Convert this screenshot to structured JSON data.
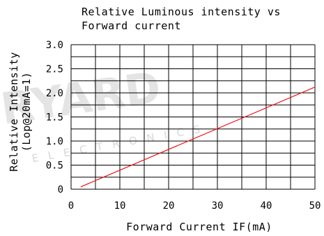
{
  "chart_data": {
    "type": "line",
    "title_lines": [
      "Relative Luminous intensity vs",
      "Forward current"
    ],
    "xlabel": "Forward Current IF(mA)",
    "ylabel_lines": [
      "Relative Intensity",
      "(Lop@20mA=1)"
    ],
    "xlim": [
      0,
      50
    ],
    "ylim": [
      0,
      3.0
    ],
    "x_ticks": [
      "0",
      "10",
      "20",
      "30",
      "40",
      "50"
    ],
    "y_ticks": [
      "0",
      "0.5",
      "1.0",
      "1.5",
      "2.0",
      "2.5",
      "3.0"
    ],
    "grid": true,
    "series": [
      {
        "color": "#e8141b",
        "x": [
          2,
          50
        ],
        "y": [
          0.05,
          2.12
        ]
      }
    ]
  },
  "watermark": {
    "brand": "RYARD",
    "sub": "ELECTRONICS"
  }
}
